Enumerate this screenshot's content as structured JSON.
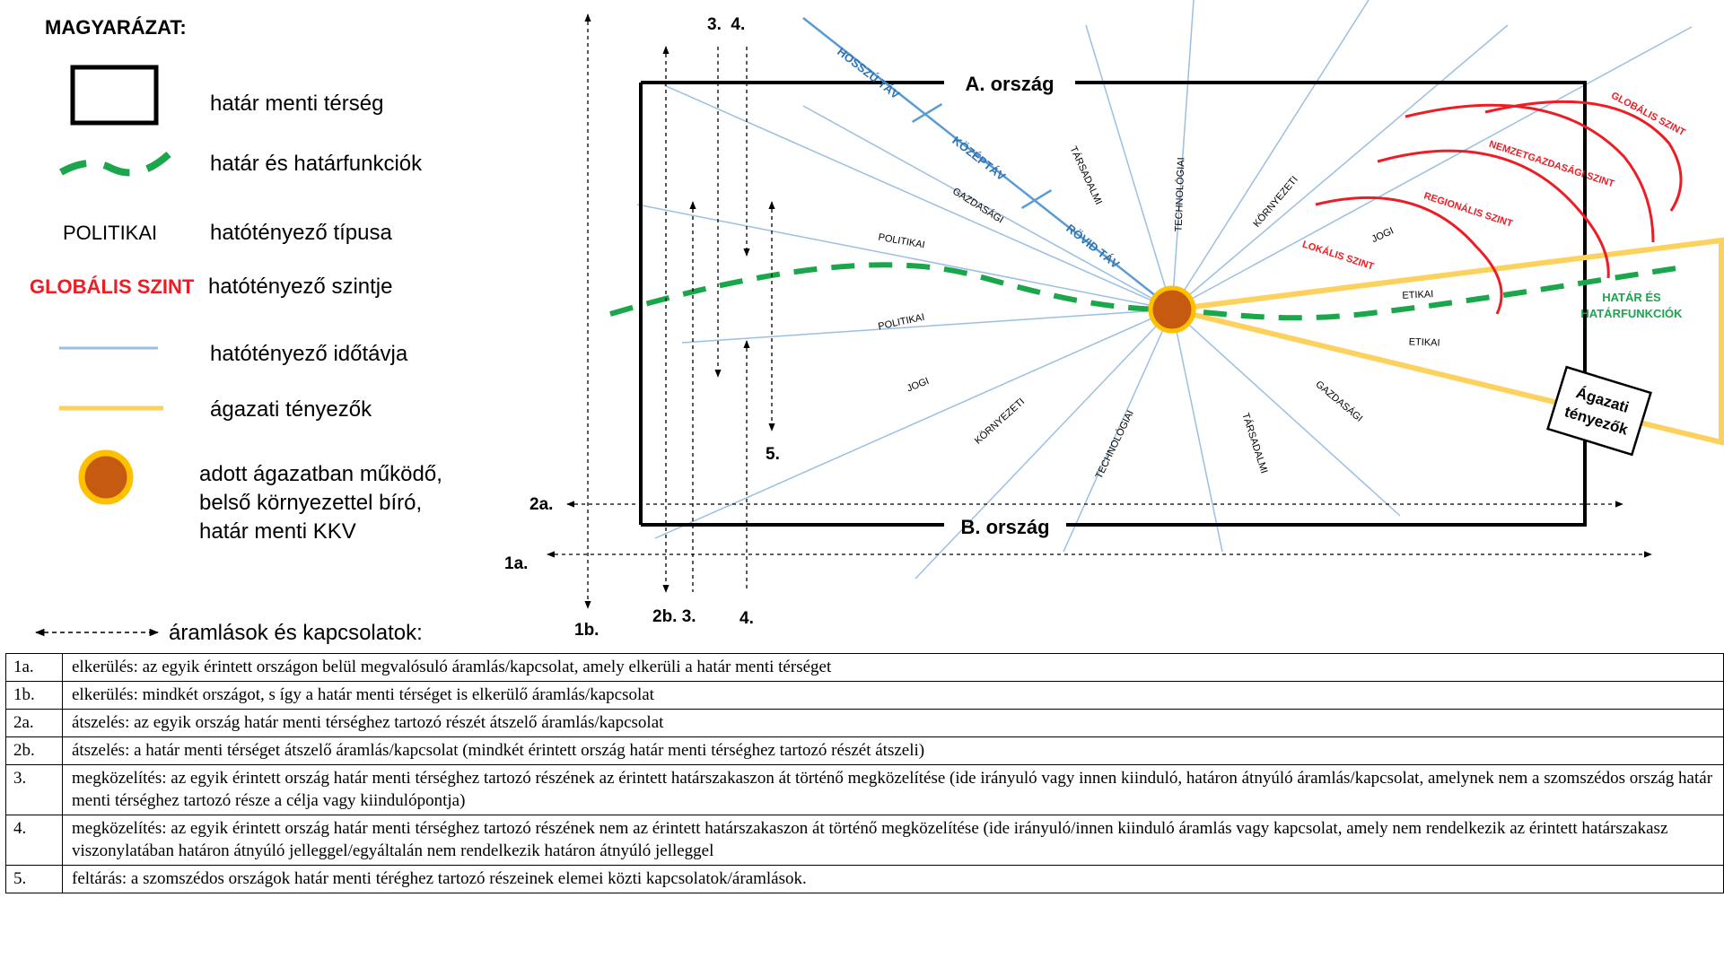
{
  "legend": {
    "title": "MAGYARÁZAT:",
    "items": [
      {
        "symbol": "black-rectangle",
        "label": "határ menti térség"
      },
      {
        "symbol": "green-dashed-line",
        "label": "határ és határfunkciók"
      },
      {
        "symbol_text": "POLITIKAI",
        "label": "hatótényező típusa"
      },
      {
        "symbol_text": "GLOBÁLIS SZINT",
        "label": "hatótényező szintje"
      },
      {
        "symbol": "blue-line",
        "label": "hatótényező időtávja"
      },
      {
        "symbol": "yellow-line",
        "label": "ágazati tényezők"
      },
      {
        "symbol": "orange-circle",
        "label_lines": [
          "adott ágazatban működő,",
          "belső környezettel bíró,",
          "határ menti KKV"
        ]
      }
    ],
    "flows_label": "áramlások és kapcsolatok:"
  },
  "colors": {
    "border": "#000000",
    "green": "#1aa64a",
    "blue": "#9bbfe3",
    "blue_text": "#2e74b5",
    "red": "#ee1c24",
    "yellow": "#fcd15d",
    "sme_fill": "#c65a11",
    "sme_ring": "#ffc000"
  },
  "diagram": {
    "country_a": "A. ország",
    "country_b": "B. ország",
    "time_horizon": {
      "long": "HOSSZÚ TÁV",
      "mid": "KÖZÉPTÁV",
      "short": "RÖVID TÁV"
    },
    "factors_top": [
      "POLITIKAI",
      "GAZDASÁGI",
      "TÁRSADALMI",
      "TECHNOLÓGIAI",
      "KÖRNYEZETI",
      "JOGI",
      "ETIKAI"
    ],
    "factors_bottom": [
      "POLITIKAI",
      "JOGI",
      "KÖRNYEZETI",
      "TECHNOLÓGIAI",
      "TÁRSADALMI",
      "GAZDASÁGI",
      "ETIKAI"
    ],
    "levels": [
      "LOKÁLIS SZINT",
      "REGIONÁLIS SZINT",
      "NEMZETGAZDASÁGI SZINT",
      "GLOBÁLIS SZINT"
    ],
    "border_label": [
      "HATÁR ÉS",
      "HATÁRFUNKCIÓK"
    ],
    "sector_label": [
      "Ágazati",
      "tényezők"
    ],
    "flow_labels": {
      "top_3_4": "3.  4.",
      "f1a": "1a.",
      "f1b": "1b.",
      "f2a": "2a.",
      "bottom_2b_3": "2b. 3.",
      "bottom_4": "4.",
      "f5": "5."
    }
  },
  "table": [
    {
      "code": "1a.",
      "text": "elkerülés: az egyik érintett országon belül megvalósuló áramlás/kapcsolat, amely elkerüli a határ menti térséget"
    },
    {
      "code": "1b.",
      "text": "elkerülés: mindkét országot, s így a határ menti térséget is elkerülő áramlás/kapcsolat"
    },
    {
      "code": "2a.",
      "text": "átszelés: az egyik ország határ menti térséghez tartozó részét átszelő áramlás/kapcsolat"
    },
    {
      "code": "2b.",
      "text": "átszelés: a határ menti térséget átszelő áramlás/kapcsolat (mindkét érintett ország határ menti térséghez tartozó részét átszeli)"
    },
    {
      "code": "3.",
      "text": "megközelítés: az egyik érintett ország határ menti térséghez tartozó részének az érintett határszakaszon át történő megközelítése (ide irányuló vagy innen kiinduló, határon átnyúló áramlás/kapcsolat, amelynek nem a szomszédos ország határ menti térséghez tartozó része a célja vagy kiindulópontja)"
    },
    {
      "code": "4.",
      "text": "megközelítés: az egyik érintett ország határ menti térséghez tartozó részének nem az érintett határszakaszon át történő megközelítése (ide irányuló/innen kiinduló áramlás vagy kapcsolat, amely nem rendelkezik az érintett határszakasz viszonylatában határon átnyúló jelleggel/egyáltalán nem rendelkezik határon átnyúló jelleggel"
    },
    {
      "code": "5.",
      "text": "feltárás: a szomszédos országok határ menti téréghez tartozó részeinek elemei közti kapcsolatok/áramlások."
    }
  ]
}
